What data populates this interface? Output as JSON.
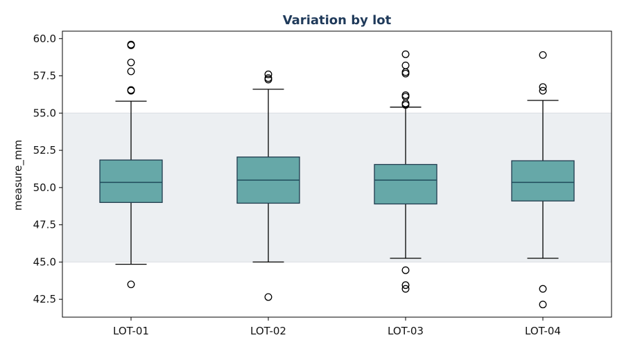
{
  "chart_data": {
    "type": "boxplot",
    "title": "Variation by lot",
    "xlabel": "",
    "ylabel": "measure_mm",
    "ylim": [
      41.3,
      60.5
    ],
    "yticks": [
      42.5,
      45.0,
      47.5,
      50.0,
      52.5,
      55.0,
      57.5,
      60.0
    ],
    "ytick_labels": [
      "42.5",
      "45.0",
      "47.5",
      "50.0",
      "52.5",
      "55.0",
      "57.5",
      "60.0"
    ],
    "spec_band": [
      45.0,
      55.0
    ],
    "categories": [
      "LOT-01",
      "LOT-02",
      "LOT-03",
      "LOT-04"
    ],
    "boxes": [
      {
        "whisker_low": 44.85,
        "q1": 49.0,
        "median": 50.35,
        "q3": 51.85,
        "whisker_high": 55.8,
        "outliers": [
          43.5,
          56.5,
          56.55,
          57.8,
          58.4,
          59.55,
          59.6
        ]
      },
      {
        "whisker_low": 45.0,
        "q1": 48.95,
        "median": 50.5,
        "q3": 52.05,
        "whisker_high": 56.6,
        "outliers": [
          42.65,
          57.25,
          57.35,
          57.6
        ]
      },
      {
        "whisker_low": 45.25,
        "q1": 48.9,
        "median": 50.5,
        "q3": 51.55,
        "whisker_high": 55.4,
        "outliers": [
          43.2,
          43.45,
          44.45,
          55.55,
          55.65,
          56.1,
          56.2,
          57.65,
          57.75,
          58.2,
          58.95
        ]
      },
      {
        "whisker_low": 45.25,
        "q1": 49.1,
        "median": 50.35,
        "q3": 51.8,
        "whisker_high": 55.85,
        "outliers": [
          42.15,
          43.2,
          56.5,
          56.75,
          58.9
        ]
      }
    ],
    "colors": {
      "box_fill": "#66a8a8",
      "box_edge": "#1f3a4d",
      "median": "#1f4a5a",
      "band": "#eceff2",
      "title": "#1f3a5a"
    },
    "grid": false,
    "legend": "none"
  }
}
